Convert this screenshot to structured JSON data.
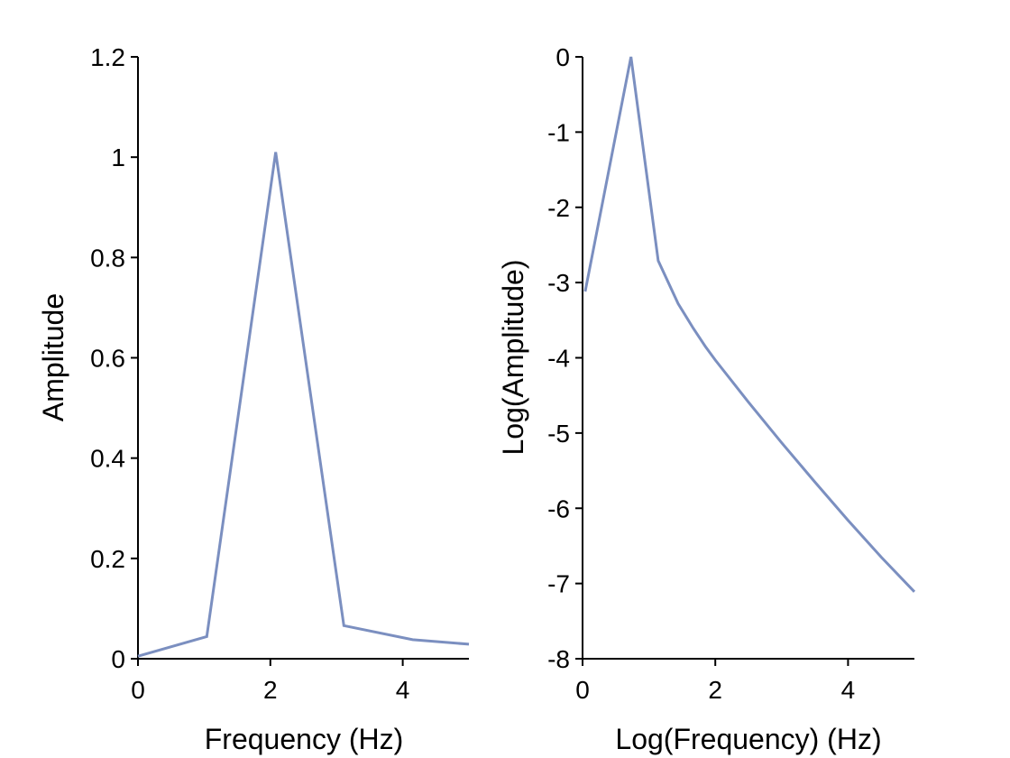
{
  "colors": {
    "series": "#7b8fc0",
    "axis": "#000000"
  },
  "chart_data": [
    {
      "type": "line",
      "title": "",
      "xlabel": "Frequency (Hz)",
      "ylabel": "Amplitude",
      "xlim": [
        0,
        5
      ],
      "ylim": [
        0,
        1.2
      ],
      "xticks": [
        0,
        2,
        4
      ],
      "xtick_labels": [
        "0",
        "2",
        "4"
      ],
      "yticks": [
        0,
        0.2,
        0.4,
        0.6,
        0.8,
        1.0,
        1.2
      ],
      "ytick_labels": [
        "0",
        "0.2",
        "0.4",
        "0.6",
        "0.8",
        "1",
        "1.2"
      ],
      "grid": false,
      "series": [
        {
          "x": [
            0,
            1.04,
            2.08,
            3.11,
            4.15,
            5.0
          ],
          "y": [
            0.005,
            0.044,
            1.01,
            0.066,
            0.038,
            0.029
          ]
        }
      ]
    },
    {
      "type": "line",
      "title": "",
      "xlabel": "Log(Frequency) (Hz)",
      "ylabel": "Log(Amplitude)",
      "xlim": [
        0,
        5
      ],
      "ylim": [
        -8,
        0
      ],
      "xticks": [
        0,
        2,
        4
      ],
      "xtick_labels": [
        "0",
        "2",
        "4"
      ],
      "yticks": [
        0,
        -1,
        -2,
        -3,
        -4,
        -5,
        -6,
        -7,
        -8
      ],
      "ytick_labels": [
        "0",
        "-1",
        "-2",
        "-3",
        "-4",
        "-5",
        "-6",
        "-7",
        "-8"
      ],
      "grid": false,
      "series": [
        {
          "x": [
            0.04,
            0.73,
            1.14,
            1.44,
            1.67,
            1.85,
            2.0,
            2.5,
            3.0,
            3.5,
            4.0,
            4.5,
            5.0
          ],
          "y": [
            -3.12,
            0.0,
            -2.71,
            -3.28,
            -3.61,
            -3.85,
            -4.03,
            -4.59,
            -5.13,
            -5.65,
            -6.16,
            -6.65,
            -7.11
          ]
        }
      ]
    }
  ]
}
